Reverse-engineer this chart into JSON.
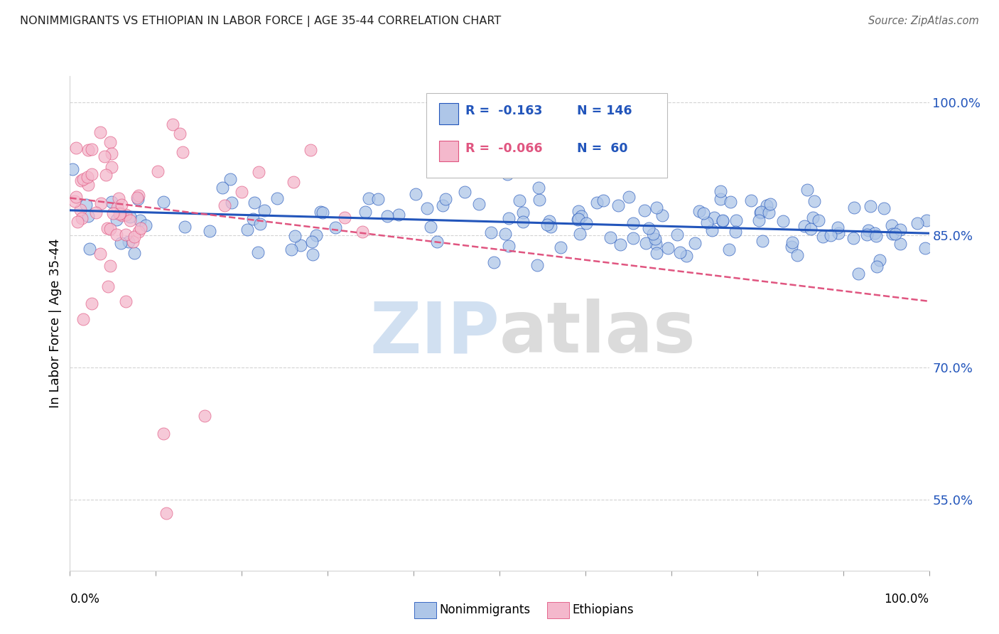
{
  "title": "NONIMMIGRANTS VS ETHIOPIAN IN LABOR FORCE | AGE 35-44 CORRELATION CHART",
  "source": "Source: ZipAtlas.com",
  "ylabel": "In Labor Force | Age 35-44",
  "ytick_labels": [
    "55.0%",
    "70.0%",
    "85.0%",
    "100.0%"
  ],
  "ytick_values": [
    0.55,
    0.7,
    0.85,
    1.0
  ],
  "legend_label1": "Nonimmigrants",
  "legend_label2": "Ethiopians",
  "r1": "-0.163",
  "n1": "146",
  "r2": "-0.066",
  "n2": "60",
  "color_blue": "#aec6e8",
  "color_pink": "#f4b8cc",
  "line_blue": "#2255bb",
  "line_pink": "#e05580",
  "blue_trend_x0": 0.0,
  "blue_trend_x1": 1.0,
  "blue_trend_y0": 0.878,
  "blue_trend_y1": 0.852,
  "pink_trend_x0": 0.0,
  "pink_trend_x1": 1.0,
  "pink_trend_y0": 0.892,
  "pink_trend_y1": 0.775,
  "xlim": [
    0.0,
    1.0
  ],
  "ylim": [
    0.47,
    1.03
  ],
  "title_color": "#222222",
  "source_color": "#666666",
  "tick_color": "#2255bb",
  "watermark_zip_color": "#ccddf0",
  "watermark_atlas_color": "#d8d8d8"
}
